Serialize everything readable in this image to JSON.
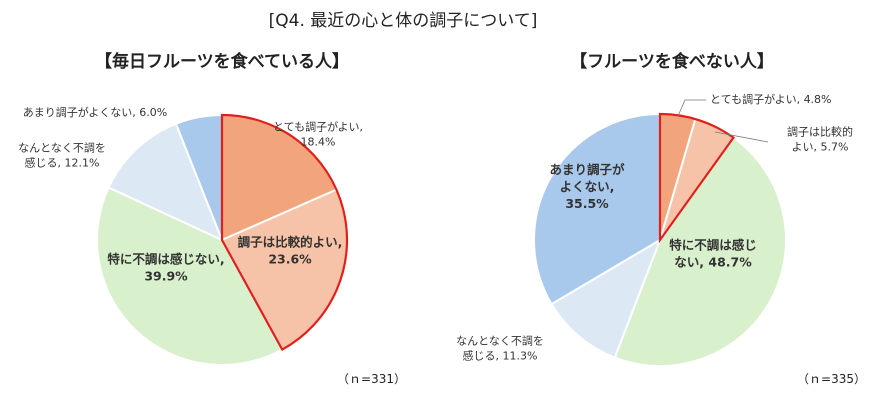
{
  "title": "[Q4. 最近の心と体の調子について]",
  "chart_data": [
    {
      "type": "pie",
      "title": "【毎日フルーツを食べている人】",
      "n_label": "（ｎ=331）",
      "start": "12 o'clock, clockwise",
      "highlight": "red outline around 「とても調子がよい」 and 「調子は比較的よい」",
      "slices": [
        {
          "label_lines": [
            "とても調子がよい,",
            "18.4%"
          ],
          "value": 18.4,
          "color": "#f2a57c",
          "highlight": true
        },
        {
          "label_lines": [
            "調子は比較的よい,",
            "23.6%"
          ],
          "value": 23.6,
          "color": "#f7c3a8",
          "highlight": true
        },
        {
          "label_lines": [
            "特に不調は感じない,",
            "39.9%"
          ],
          "value": 39.9,
          "color": "#d9f0cd",
          "highlight": false
        },
        {
          "label_lines": [
            "なんとなく不調を",
            "感じる, 12.1%"
          ],
          "value": 12.1,
          "color": "#dde8f5",
          "highlight": false
        },
        {
          "label_lines": [
            "あまり調子がよくない, 6.0%"
          ],
          "value": 6.0,
          "color": "#a9c9ec",
          "highlight": false
        }
      ]
    },
    {
      "type": "pie",
      "title": "【フルーツを食べない人】",
      "n_label": "（ｎ=335）",
      "start": "12 o'clock, clockwise",
      "highlight": "red outline around 「とても調子がよい」 and 「調子は比較的よい」",
      "slices": [
        {
          "label_lines": [
            "とても調子がよい, 4.8%"
          ],
          "value": 4.8,
          "color": "#f2a57c",
          "highlight": true
        },
        {
          "label_lines": [
            "調子は比較的",
            "よい, 5.7%"
          ],
          "value": 5.7,
          "color": "#f7c3a8",
          "highlight": true
        },
        {
          "label_lines": [
            "特に不調は感じ",
            "ない, 48.7%"
          ],
          "value": 48.7,
          "color": "#d9f0cd",
          "highlight": false
        },
        {
          "label_lines": [
            "なんとなく不調を",
            "感じる, 11.3%"
          ],
          "value": 11.3,
          "color": "#dde8f5",
          "highlight": false
        },
        {
          "label_lines": [
            "あまり調子が",
            "よくない,",
            "35.5%"
          ],
          "value": 35.5,
          "color": "#a9c9ec",
          "highlight": false
        }
      ]
    }
  ]
}
